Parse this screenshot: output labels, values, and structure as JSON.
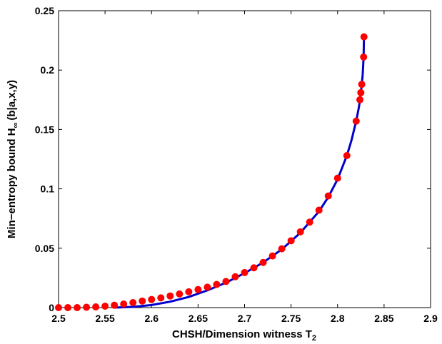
{
  "chart_data": {
    "type": "scatter",
    "title": "",
    "xlabel": "CHSH/Dimension witness T",
    "xlabel_sub": "2",
    "ylabel": "Min−entropy bound H",
    "ylabel_sub": "∞",
    "ylabel_suffix": "(b|a,x,y)",
    "xlim": [
      2.5,
      2.9
    ],
    "ylim": [
      0,
      0.25
    ],
    "xticks": [
      "2.5",
      "2.55",
      "2.6",
      "2.65",
      "2.7",
      "2.75",
      "2.8",
      "2.85",
      "2.9"
    ],
    "yticks": [
      "0",
      "0.05",
      "0.1",
      "0.15",
      "0.2",
      "0.25"
    ],
    "grid": false,
    "series": [
      {
        "kind": "markers",
        "color": "#ff0000",
        "points": [
          [
            2.5,
            0.0
          ],
          [
            2.51,
            0.0
          ],
          [
            2.52,
            0.0
          ],
          [
            2.53,
            0.0003
          ],
          [
            2.54,
            0.0006
          ],
          [
            2.55,
            0.0012
          ],
          [
            2.56,
            0.002
          ],
          [
            2.57,
            0.003
          ],
          [
            2.58,
            0.0042
          ],
          [
            2.59,
            0.0055
          ],
          [
            2.6,
            0.0068
          ],
          [
            2.61,
            0.0082
          ],
          [
            2.62,
            0.0098
          ],
          [
            2.63,
            0.0115
          ],
          [
            2.64,
            0.0133
          ],
          [
            2.65,
            0.0152
          ],
          [
            2.66,
            0.0172
          ],
          [
            2.67,
            0.0195
          ],
          [
            2.68,
            0.022
          ],
          [
            2.69,
            0.026
          ],
          [
            2.7,
            0.0295
          ],
          [
            2.71,
            0.0335
          ],
          [
            2.72,
            0.038
          ],
          [
            2.73,
            0.0435
          ],
          [
            2.74,
            0.0495
          ],
          [
            2.75,
            0.0563
          ],
          [
            2.76,
            0.0638
          ],
          [
            2.77,
            0.072
          ],
          [
            2.78,
            0.082
          ],
          [
            2.79,
            0.094
          ],
          [
            2.8,
            0.109
          ],
          [
            2.81,
            0.128
          ],
          [
            2.82,
            0.157
          ],
          [
            2.824,
            0.175
          ],
          [
            2.825,
            0.181
          ],
          [
            2.826,
            0.188
          ],
          [
            2.828,
            0.211
          ],
          [
            2.8284,
            0.228
          ]
        ]
      },
      {
        "kind": "line",
        "color": "#0000cc",
        "points": [
          [
            2.56,
            0.0
          ],
          [
            2.58,
            0.0006
          ],
          [
            2.6,
            0.0022
          ],
          [
            2.62,
            0.005
          ],
          [
            2.64,
            0.009
          ],
          [
            2.66,
            0.0145
          ],
          [
            2.68,
            0.021
          ],
          [
            2.7,
            0.029
          ],
          [
            2.72,
            0.038
          ],
          [
            2.74,
            0.049
          ],
          [
            2.76,
            0.063
          ],
          [
            2.78,
            0.081
          ],
          [
            2.79,
            0.093
          ],
          [
            2.8,
            0.108
          ],
          [
            2.81,
            0.128
          ],
          [
            2.815,
            0.141
          ],
          [
            2.82,
            0.157
          ],
          [
            2.823,
            0.169
          ],
          [
            2.825,
            0.18
          ],
          [
            2.827,
            0.196
          ],
          [
            2.828,
            0.211
          ],
          [
            2.8284,
            0.229
          ]
        ]
      }
    ]
  }
}
